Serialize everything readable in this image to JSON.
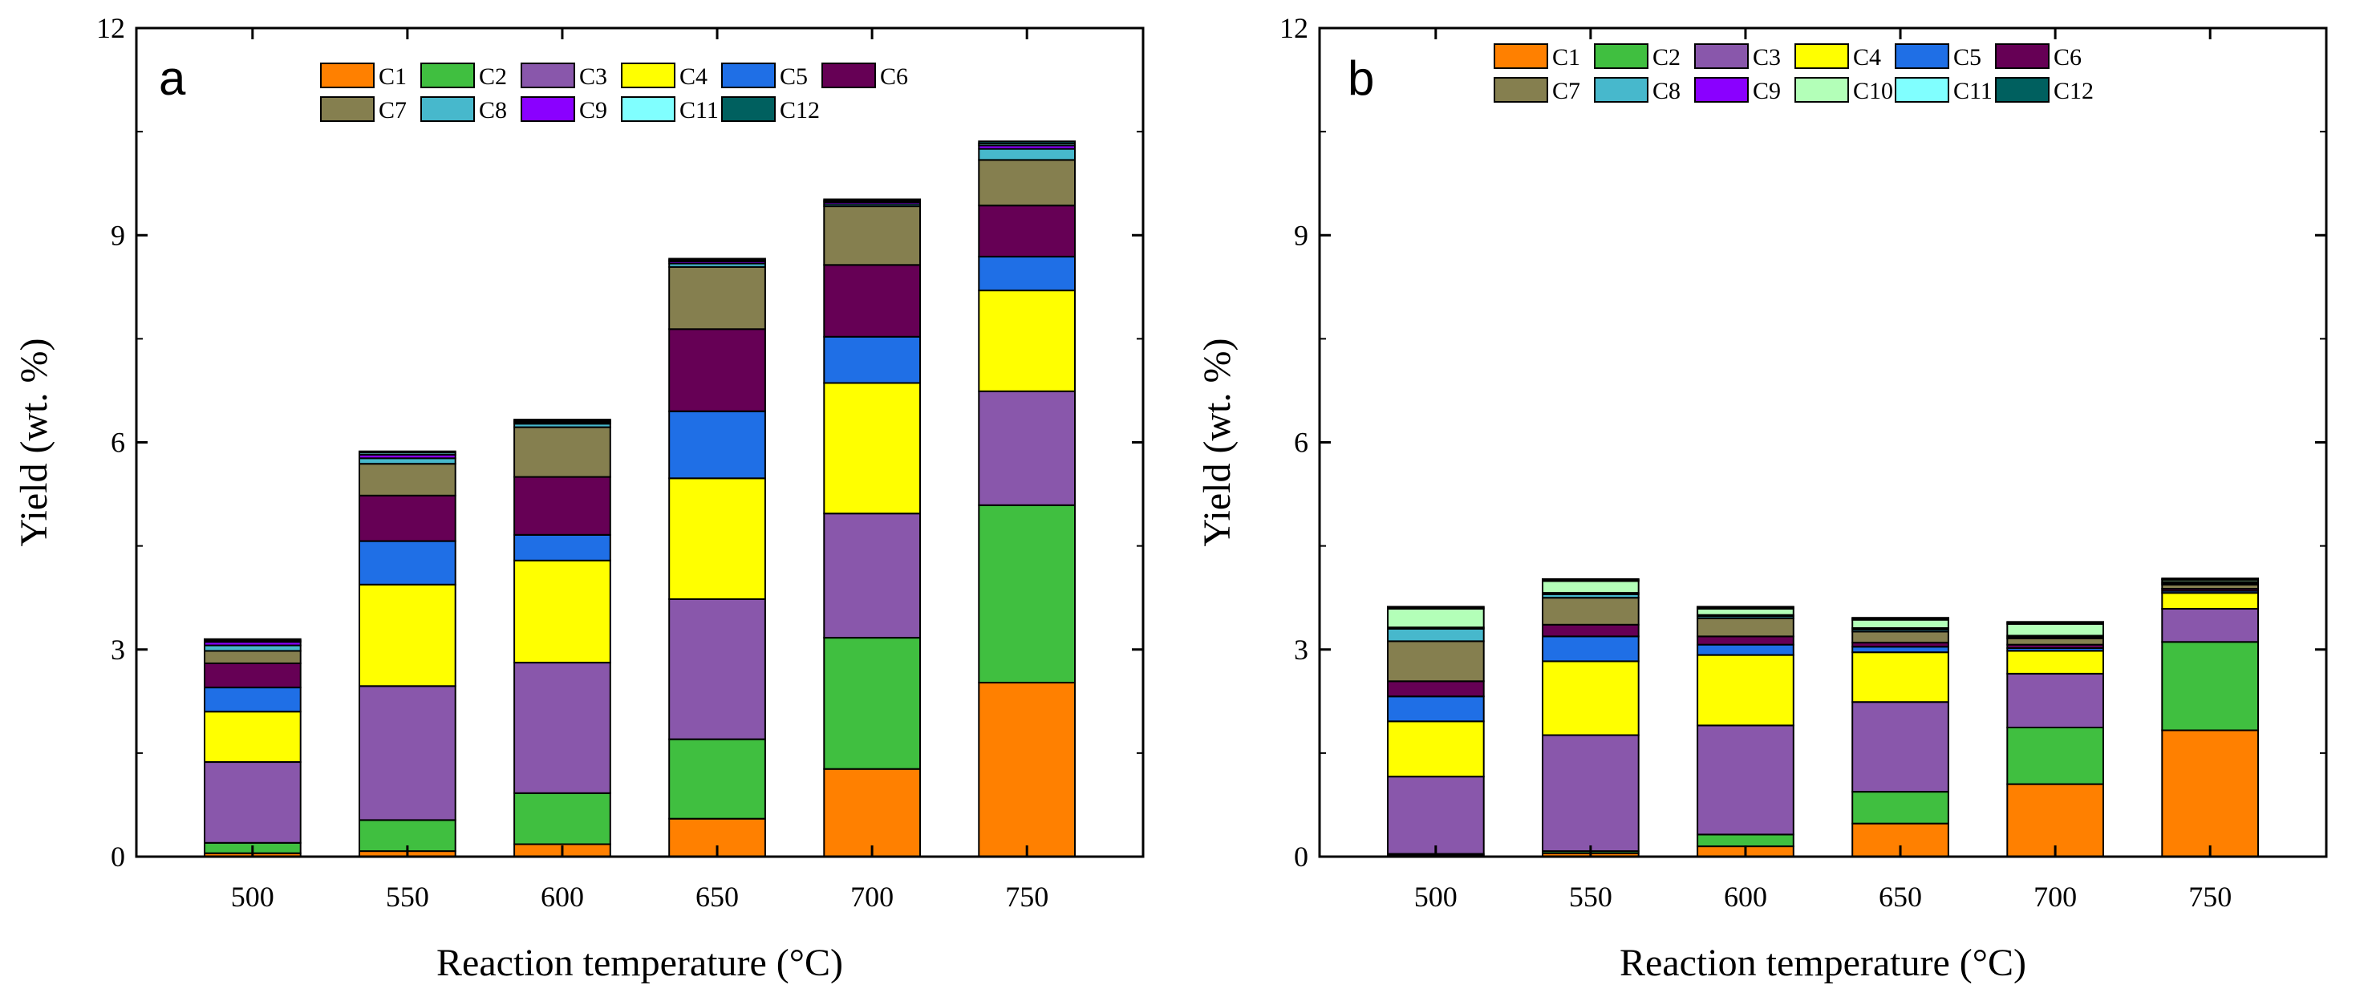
{
  "colors": {
    "C1": "#ff8000",
    "C2": "#40bf40",
    "C3": "#8957ab",
    "C4": "#ffff00",
    "C5": "#1f6fe6",
    "C6": "#660055",
    "C7": "#857f4f",
    "C8": "#47b8cc",
    "C9": "#8a00ff",
    "C10": "#b3ffb8",
    "C11": "#80ffff",
    "C12": "#00605f"
  },
  "chart_data": [
    {
      "type": "bar",
      "stacked": true,
      "panel_label": "a",
      "title": "",
      "xlabel": "Reaction temperature (°C)",
      "ylabel": "Yield (wt. %)",
      "ylim": [
        0,
        12
      ],
      "yticks": [
        "0",
        "3",
        "6",
        "9",
        "12"
      ],
      "categories": [
        "500",
        "550",
        "600",
        "650",
        "700",
        "750"
      ],
      "legend_rows": [
        [
          "C1",
          "C2",
          "C3",
          "C4",
          "C5",
          "C6"
        ],
        [
          "C7",
          "C8",
          "C9",
          "C11",
          "C12"
        ]
      ],
      "series": [
        {
          "name": "C1",
          "values": [
            0.05,
            0.08,
            0.18,
            0.55,
            1.27,
            2.52
          ]
        },
        {
          "name": "C2",
          "values": [
            0.15,
            0.45,
            0.74,
            1.15,
            1.9,
            2.57
          ]
        },
        {
          "name": "C3",
          "values": [
            1.17,
            1.94,
            1.89,
            2.03,
            1.8,
            1.65
          ]
        },
        {
          "name": "C4",
          "values": [
            0.73,
            1.47,
            1.48,
            1.75,
            1.89,
            1.46
          ]
        },
        {
          "name": "C5",
          "values": [
            0.35,
            0.63,
            0.37,
            0.97,
            0.67,
            0.49
          ]
        },
        {
          "name": "C6",
          "values": [
            0.35,
            0.66,
            0.84,
            1.19,
            1.04,
            0.74
          ]
        },
        {
          "name": "C7",
          "values": [
            0.18,
            0.46,
            0.72,
            0.9,
            0.85,
            0.66
          ]
        },
        {
          "name": "C8",
          "values": [
            0.08,
            0.08,
            0.05,
            0.05,
            0.03,
            0.16
          ]
        },
        {
          "name": "C9",
          "values": [
            0.05,
            0.05,
            0.02,
            0.03,
            0.03,
            0.05
          ]
        },
        {
          "name": "C11",
          "values": [
            0.02,
            0.03,
            0.02,
            0.02,
            0.02,
            0.03
          ]
        },
        {
          "name": "C12",
          "values": [
            0.02,
            0.02,
            0.02,
            0.02,
            0.02,
            0.03
          ]
        }
      ]
    },
    {
      "type": "bar",
      "stacked": true,
      "panel_label": "b",
      "title": "",
      "xlabel": "Reaction temperature (°C)",
      "ylabel": "Yield (wt. %)",
      "ylim": [
        0,
        12
      ],
      "yticks": [
        "0",
        "3",
        "6",
        "9",
        "12"
      ],
      "categories": [
        "500",
        "550",
        "600",
        "650",
        "700",
        "750"
      ],
      "legend_rows": [
        [
          "C1",
          "C2",
          "C3",
          "C4",
          "C5",
          "C6"
        ],
        [
          "C7",
          "C8",
          "C9",
          "C10",
          "C11",
          "C12"
        ]
      ],
      "series": [
        {
          "name": "C1",
          "values": [
            0.02,
            0.05,
            0.15,
            0.48,
            1.05,
            1.83
          ]
        },
        {
          "name": "C2",
          "values": [
            0.02,
            0.03,
            0.17,
            0.46,
            0.82,
            1.28
          ]
        },
        {
          "name": "C3",
          "values": [
            1.12,
            1.68,
            1.58,
            1.3,
            0.78,
            0.48
          ]
        },
        {
          "name": "C4",
          "values": [
            0.8,
            1.07,
            1.02,
            0.72,
            0.33,
            0.23
          ]
        },
        {
          "name": "C5",
          "values": [
            0.36,
            0.36,
            0.15,
            0.08,
            0.04,
            0.03
          ]
        },
        {
          "name": "C6",
          "values": [
            0.22,
            0.17,
            0.12,
            0.06,
            0.05,
            0.03
          ]
        },
        {
          "name": "C7",
          "values": [
            0.58,
            0.39,
            0.26,
            0.16,
            0.09,
            0.06
          ]
        },
        {
          "name": "C8",
          "values": [
            0.18,
            0.05,
            0.03,
            0.03,
            0.02,
            0.02
          ]
        },
        {
          "name": "C9",
          "values": [
            0.02,
            0.02,
            0.02,
            0.02,
            0.02,
            0.02
          ]
        },
        {
          "name": "C10",
          "values": [
            0.27,
            0.17,
            0.09,
            0.12,
            0.17,
            0.03
          ]
        },
        {
          "name": "C11",
          "values": [
            0.02,
            0.02,
            0.02,
            0.02,
            0.02,
            0.01
          ]
        },
        {
          "name": "C12",
          "values": [
            0.01,
            0.01,
            0.01,
            0.01,
            0.01,
            0.01
          ]
        }
      ]
    }
  ]
}
